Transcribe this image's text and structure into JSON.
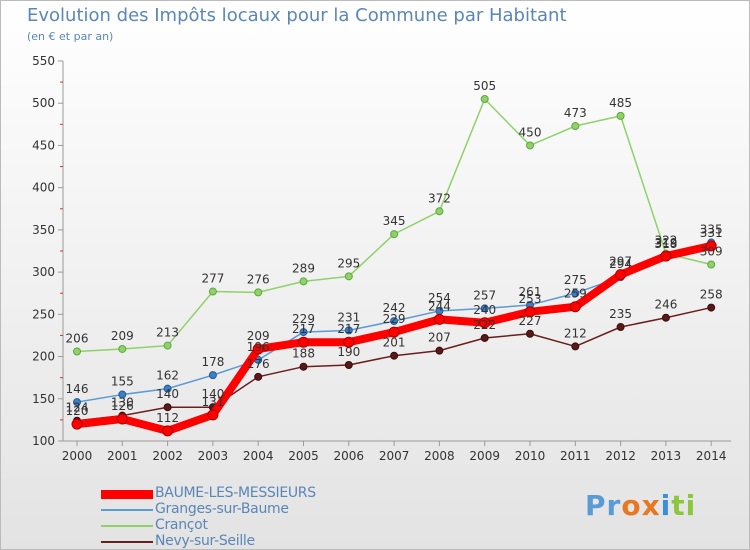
{
  "page": {
    "title": "Evolution des Impôts locaux pour la Commune par Habitant",
    "subtitle": "(en € et par an)",
    "brand": {
      "letters": [
        "P",
        "r",
        "o",
        "x",
        "i",
        "t",
        "i"
      ],
      "colors": [
        "#5b9bd5",
        "#5b9bd5",
        "#e87722",
        "#e87722",
        "#3a8fd8",
        "#8cc63f",
        "#8cc63f"
      ]
    }
  },
  "chart_data": {
    "type": "line",
    "title": "Evolution des Impôts locaux pour la Commune par Habitant",
    "subtitle": "(en € et par an)",
    "xlabel": "",
    "ylabel": "",
    "x": [
      "2000",
      "2001",
      "2002",
      "2003",
      "2004",
      "2005",
      "2006",
      "2007",
      "2008",
      "2009",
      "2010",
      "2011",
      "2012",
      "2013",
      "2014"
    ],
    "ylim": [
      100,
      550
    ],
    "yticks": [
      100,
      150,
      200,
      250,
      300,
      350,
      400,
      450,
      500,
      550
    ],
    "grid": false,
    "legend_position": "bottom-left",
    "series": [
      {
        "name": "BAUME-LES-MESSIEURS",
        "color": "#ff0000",
        "values": [
          120,
          126,
          112,
          131,
          209,
          217,
          217,
          229,
          244,
          240,
          253,
          259,
          297,
          319,
          331
        ],
        "labels": [
          "120",
          "126",
          "112",
          "131",
          "209",
          "217",
          "217",
          "229",
          "244",
          "240",
          "253",
          "259",
          "297",
          "319",
          "331"
        ]
      },
      {
        "name": "Granges-sur-Baume",
        "color": "#5b9bd5",
        "values": [
          146,
          155,
          162,
          178,
          196,
          229,
          231,
          242,
          254,
          257,
          261,
          275,
          294,
          318,
          335
        ],
        "labels": [
          "146",
          "155",
          "162",
          "178",
          "196",
          "229",
          "231",
          "242",
          "254",
          "257",
          "261",
          "275",
          "294",
          "318",
          "335"
        ]
      },
      {
        "name": "Crançot",
        "color": "#8fd16a",
        "values": [
          206,
          209,
          213,
          277,
          276,
          289,
          295,
          345,
          372,
          505,
          450,
          473,
          485,
          322,
          309
        ],
        "labels": [
          "206",
          "209",
          "213",
          "277",
          "276",
          "289",
          "295",
          "345",
          "372",
          "505",
          "450",
          "473",
          "485",
          "322",
          "309"
        ]
      },
      {
        "name": "Nevy-sur-Seille",
        "color": "#6b1e1e",
        "values": [
          124,
          130,
          140,
          140,
          176,
          188,
          190,
          201,
          207,
          222,
          227,
          212,
          235,
          246,
          258
        ],
        "labels": [
          "124",
          "130",
          "140",
          "140",
          "176",
          "188",
          "190",
          "201",
          "207",
          "222",
          "227",
          "212",
          "235",
          "246",
          "258"
        ]
      }
    ]
  }
}
